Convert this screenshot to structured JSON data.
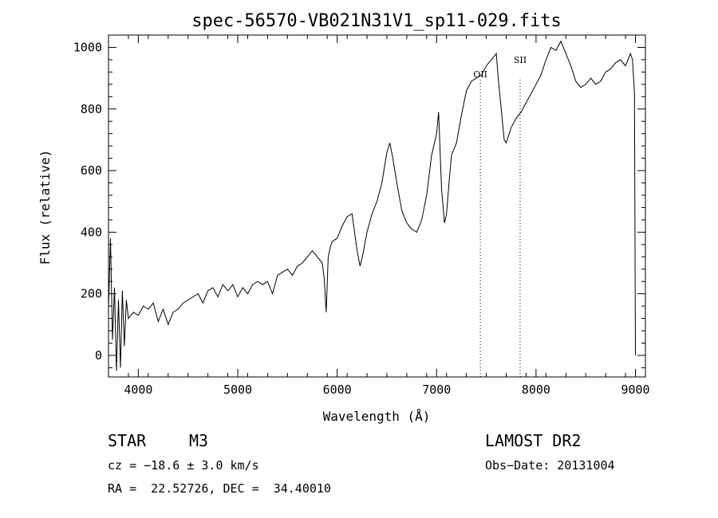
{
  "chart_data": {
    "type": "line",
    "title": "spec-56570-VB021N31V1_sp11-029.fits",
    "xlabel": "Wavelength (Å)",
    "ylabel": "Flux (relative)",
    "xlim": [
      3700,
      9100
    ],
    "ylim": [
      -70,
      1040
    ],
    "x_ticks": [
      4000,
      5000,
      6000,
      7000,
      8000,
      9000
    ],
    "y_ticks": [
      0,
      200,
      400,
      600,
      800,
      1000
    ],
    "grid": false,
    "series": [
      {
        "x": [
          3700,
          3720,
          3740,
          3760,
          3780,
          3800,
          3820,
          3840,
          3860,
          3880,
          3900,
          3950,
          4000,
          4050,
          4100,
          4150,
          4200,
          4250,
          4300,
          4350,
          4400,
          4450,
          4500,
          4550,
          4600,
          4650,
          4700,
          4750,
          4800,
          4850,
          4900,
          4950,
          5000,
          5050,
          5100,
          5150,
          5200,
          5250,
          5300,
          5350,
          5400,
          5450,
          5500,
          5550,
          5600,
          5650,
          5700,
          5750,
          5800,
          5850,
          5870,
          5890,
          5910,
          5930,
          5950,
          6000,
          6050,
          6100,
          6150,
          6200,
          6230,
          6260,
          6300,
          6350,
          6400,
          6450,
          6500,
          6530,
          6560,
          6600,
          6650,
          6700,
          6750,
          6800,
          6850,
          6900,
          6950,
          7000,
          7020,
          7050,
          7080,
          7100,
          7130,
          7150,
          7200,
          7250,
          7300,
          7350,
          7400,
          7450,
          7500,
          7550,
          7600,
          7620,
          7650,
          7680,
          7700,
          7750,
          7800,
          7850,
          7900,
          7950,
          8000,
          8050,
          8100,
          8150,
          8200,
          8250,
          8300,
          8350,
          8400,
          8450,
          8500,
          8550,
          8600,
          8650,
          8700,
          8750,
          8800,
          8850,
          8900,
          8950,
          8970,
          8990,
          9000
        ],
        "y": [
          150,
          380,
          50,
          220,
          -50,
          180,
          -40,
          210,
          30,
          180,
          120,
          140,
          130,
          160,
          150,
          170,
          110,
          150,
          100,
          140,
          150,
          170,
          180,
          190,
          200,
          170,
          210,
          220,
          190,
          230,
          210,
          230,
          190,
          220,
          200,
          230,
          240,
          230,
          240,
          200,
          260,
          270,
          280,
          260,
          290,
          300,
          320,
          340,
          320,
          300,
          250,
          140,
          320,
          350,
          370,
          380,
          420,
          450,
          460,
          340,
          290,
          330,
          400,
          460,
          500,
          560,
          660,
          690,
          640,
          560,
          470,
          430,
          410,
          400,
          440,
          520,
          650,
          720,
          790,
          540,
          430,
          460,
          580,
          650,
          690,
          780,
          860,
          890,
          900,
          910,
          940,
          960,
          980,
          900,
          800,
          700,
          690,
          740,
          770,
          790,
          820,
          850,
          880,
          910,
          960,
          1000,
          990,
          1020,
          980,
          940,
          890,
          870,
          880,
          900,
          880,
          890,
          920,
          930,
          950,
          960,
          940,
          980,
          960,
          850,
          0
        ]
      }
    ],
    "annotations": [
      {
        "label": "OII",
        "x": 7440
      },
      {
        "label": "SII",
        "x": 7840
      }
    ]
  },
  "info": {
    "object_class": "STAR",
    "subclass": "M3",
    "survey": "LAMOST DR2",
    "redshift_line": "cz = −18.6 ± 3.0 km/s",
    "obs_date_line": "Obs−Date: 20131004",
    "coords_line": "RA =  22.52726, DEC =  34.40010"
  }
}
